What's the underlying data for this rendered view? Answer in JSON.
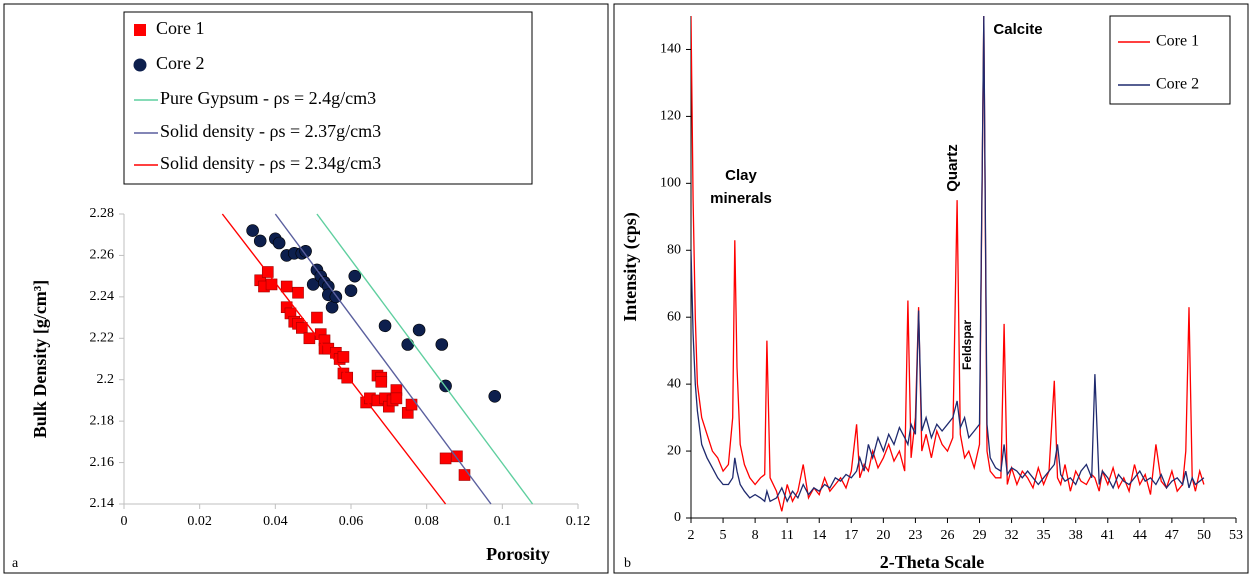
{
  "chart_data": [
    {
      "type": "scatter",
      "panel_label": "a",
      "xlabel": "Porosity",
      "ylabel": "Bulk Density [g/cm³]",
      "xlim": [
        0,
        0.12
      ],
      "xticks": [
        0,
        0.02,
        0.04,
        0.06,
        0.08,
        0.1,
        0.12
      ],
      "ylim": [
        2.14,
        2.28
      ],
      "yticks": [
        2.14,
        2.16,
        2.18,
        2.2,
        2.22,
        2.24,
        2.26,
        2.28
      ],
      "series": [
        {
          "name": "Core 1",
          "color": "#ff0000",
          "marker": "square",
          "x": [
            0.036,
            0.038,
            0.037,
            0.039,
            0.043,
            0.043,
            0.044,
            0.045,
            0.046,
            0.046,
            0.047,
            0.049,
            0.051,
            0.052,
            0.053,
            0.053,
            0.054,
            0.056,
            0.057,
            0.058,
            0.058,
            0.059,
            0.064,
            0.065,
            0.067,
            0.067,
            0.068,
            0.068,
            0.069,
            0.07,
            0.071,
            0.072,
            0.072,
            0.075,
            0.076,
            0.085,
            0.088,
            0.09
          ],
          "values": [
            2.248,
            2.252,
            2.245,
            2.246,
            2.245,
            2.235,
            2.232,
            2.228,
            2.242,
            2.227,
            2.225,
            2.22,
            2.23,
            2.222,
            2.219,
            2.215,
            2.215,
            2.213,
            2.21,
            2.211,
            2.203,
            2.201,
            2.189,
            2.191,
            2.202,
            2.19,
            2.201,
            2.199,
            2.191,
            2.187,
            2.19,
            2.195,
            2.191,
            2.184,
            2.188,
            2.162,
            2.163,
            2.154
          ]
        },
        {
          "name": "Core 2",
          "color": "#0d1f4d",
          "marker": "circle",
          "x": [
            0.034,
            0.036,
            0.04,
            0.041,
            0.043,
            0.045,
            0.047,
            0.048,
            0.05,
            0.051,
            0.052,
            0.053,
            0.054,
            0.054,
            0.055,
            0.056,
            0.06,
            0.061,
            0.069,
            0.075,
            0.078,
            0.084,
            0.085,
            0.098
          ],
          "values": [
            2.272,
            2.267,
            2.268,
            2.266,
            2.26,
            2.261,
            2.261,
            2.262,
            2.246,
            2.253,
            2.25,
            2.247,
            2.245,
            2.241,
            2.235,
            2.24,
            2.243,
            2.25,
            2.226,
            2.217,
            2.224,
            2.217,
            2.197,
            2.192
          ]
        },
        {
          "name": "Pure Gypsum  - ρs = 2.4g/cm3",
          "color": "#5fcf9f",
          "marker": "line",
          "x": [
            0.051,
            0.108
          ],
          "values": [
            2.28,
            2.14
          ]
        },
        {
          "name": "Solid density - ρs = 2.37g/cm3",
          "color": "#5a5f9e",
          "marker": "line",
          "x": [
            0.04,
            0.097
          ],
          "values": [
            2.28,
            2.14
          ]
        },
        {
          "name": "Solid density - ρs = 2.34g/cm3",
          "color": "#ff0000",
          "marker": "line",
          "x": [
            0.026,
            0.085
          ],
          "values": [
            2.28,
            2.14
          ]
        }
      ]
    },
    {
      "type": "line",
      "panel_label": "b",
      "xlabel": "2-Theta Scale",
      "ylabel": "Intensity (cps)",
      "legend": "upper right",
      "annotations": [
        "Clay",
        "minerals",
        "Quartz",
        "Feldspar",
        "Calcite"
      ],
      "xlim": [
        2,
        53
      ],
      "xticks": [
        2,
        5,
        8,
        11,
        14,
        17,
        20,
        23,
        26,
        29,
        32,
        35,
        38,
        41,
        44,
        47,
        50,
        53
      ],
      "ylim": [
        0,
        150
      ],
      "yticks": [
        0,
        20,
        40,
        60,
        80,
        100,
        120,
        140
      ],
      "x": [
        2,
        2.2,
        2.4,
        2.6,
        3,
        3.5,
        4,
        4.5,
        5,
        5.5,
        5.9,
        6.1,
        6.3,
        6.6,
        7,
        7.5,
        8,
        8.5,
        8.9,
        9.1,
        9.4,
        10,
        10.5,
        11,
        11.5,
        12,
        12.5,
        13,
        13.5,
        14,
        14.5,
        15,
        15.5,
        16,
        16.5,
        17,
        17.5,
        17.8,
        18.2,
        18.6,
        19,
        19.5,
        20,
        20.5,
        21,
        21.5,
        22,
        22.3,
        22.6,
        23,
        23.3,
        23.6,
        24,
        24.5,
        25,
        25.5,
        26,
        26.5,
        26.9,
        27.2,
        27.6,
        28,
        28.5,
        29,
        29.4,
        29.7,
        30,
        30.5,
        31,
        31.3,
        31.6,
        32,
        32.5,
        33,
        33.5,
        34,
        34.5,
        35,
        35.5,
        36,
        36.3,
        36.6,
        37,
        37.5,
        38,
        38.5,
        39,
        39.5,
        39.8,
        40.2,
        40.5,
        41,
        41.5,
        42,
        42.5,
        43,
        43.5,
        44,
        44.5,
        45,
        45.5,
        46,
        46.5,
        47,
        47.5,
        48,
        48.3,
        48.6,
        48.9,
        49.2,
        49.6,
        50
      ],
      "series": [
        {
          "name": "Core 1",
          "color": "#ff0000",
          "values": [
            150,
            95,
            60,
            40,
            30,
            25,
            20,
            18,
            14,
            16,
            30,
            83,
            45,
            22,
            16,
            12,
            10,
            12,
            13,
            53,
            12,
            8,
            2,
            10,
            5,
            8,
            16,
            6,
            9,
            7,
            12,
            8,
            10,
            12,
            9,
            14,
            28,
            12,
            16,
            14,
            20,
            15,
            18,
            22,
            17,
            20,
            14,
            65,
            18,
            30,
            63,
            20,
            25,
            18,
            26,
            22,
            20,
            24,
            95,
            25,
            18,
            20,
            15,
            22,
            150,
            20,
            14,
            12,
            12,
            58,
            10,
            15,
            10,
            14,
            12,
            9,
            15,
            10,
            14,
            41,
            12,
            10,
            16,
            8,
            14,
            11,
            10,
            13,
            12,
            8,
            14,
            10,
            15,
            9,
            12,
            8,
            16,
            10,
            13,
            7,
            22,
            11,
            9,
            14,
            8,
            10,
            20,
            63,
            12,
            8,
            14,
            10
          ]
        },
        {
          "name": "Core 2",
          "color": "#1f2a6e",
          "values": [
            80,
            55,
            40,
            32,
            22,
            18,
            15,
            12,
            10,
            10,
            12,
            18,
            14,
            10,
            8,
            6,
            7,
            6,
            5,
            8,
            5,
            6,
            9,
            5,
            8,
            6,
            10,
            7,
            9,
            8,
            10,
            9,
            12,
            11,
            13,
            12,
            14,
            18,
            14,
            22,
            18,
            24,
            20,
            25,
            22,
            27,
            24,
            22,
            28,
            25,
            62,
            26,
            30,
            24,
            28,
            26,
            28,
            30,
            35,
            27,
            30,
            24,
            26,
            28,
            150,
            28,
            18,
            15,
            14,
            22,
            13,
            15,
            14,
            12,
            14,
            12,
            10,
            12,
            14,
            16,
            22,
            13,
            11,
            12,
            10,
            14,
            16,
            12,
            43,
            10,
            14,
            12,
            9,
            13,
            11,
            10,
            12,
            14,
            11,
            12,
            10,
            13,
            9,
            11,
            12,
            10,
            14,
            9,
            12,
            10,
            11,
            12
          ]
        }
      ]
    }
  ]
}
